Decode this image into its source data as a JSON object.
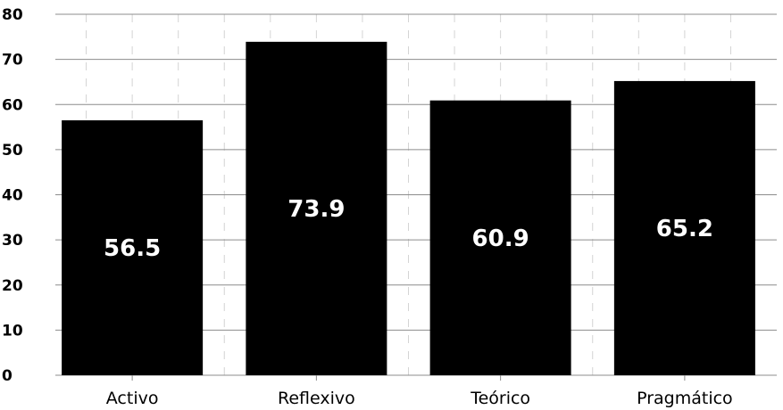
{
  "chart_data": {
    "type": "bar",
    "categories": [
      "Activo",
      "Reflexivo",
      "Teórico",
      "Pragmático"
    ],
    "values": [
      56.5,
      73.9,
      60.9,
      65.2
    ],
    "data_labels": [
      "56.5",
      "73.9",
      "60.9",
      "65.2"
    ],
    "title": "",
    "xlabel": "",
    "ylabel": "",
    "ylim": [
      0,
      80
    ],
    "yticks": [
      0,
      10,
      20,
      30,
      40,
      50,
      60,
      70,
      80
    ],
    "grid": true,
    "legend": "none",
    "bar_color": "#000000",
    "label_color": "#ffffff"
  }
}
